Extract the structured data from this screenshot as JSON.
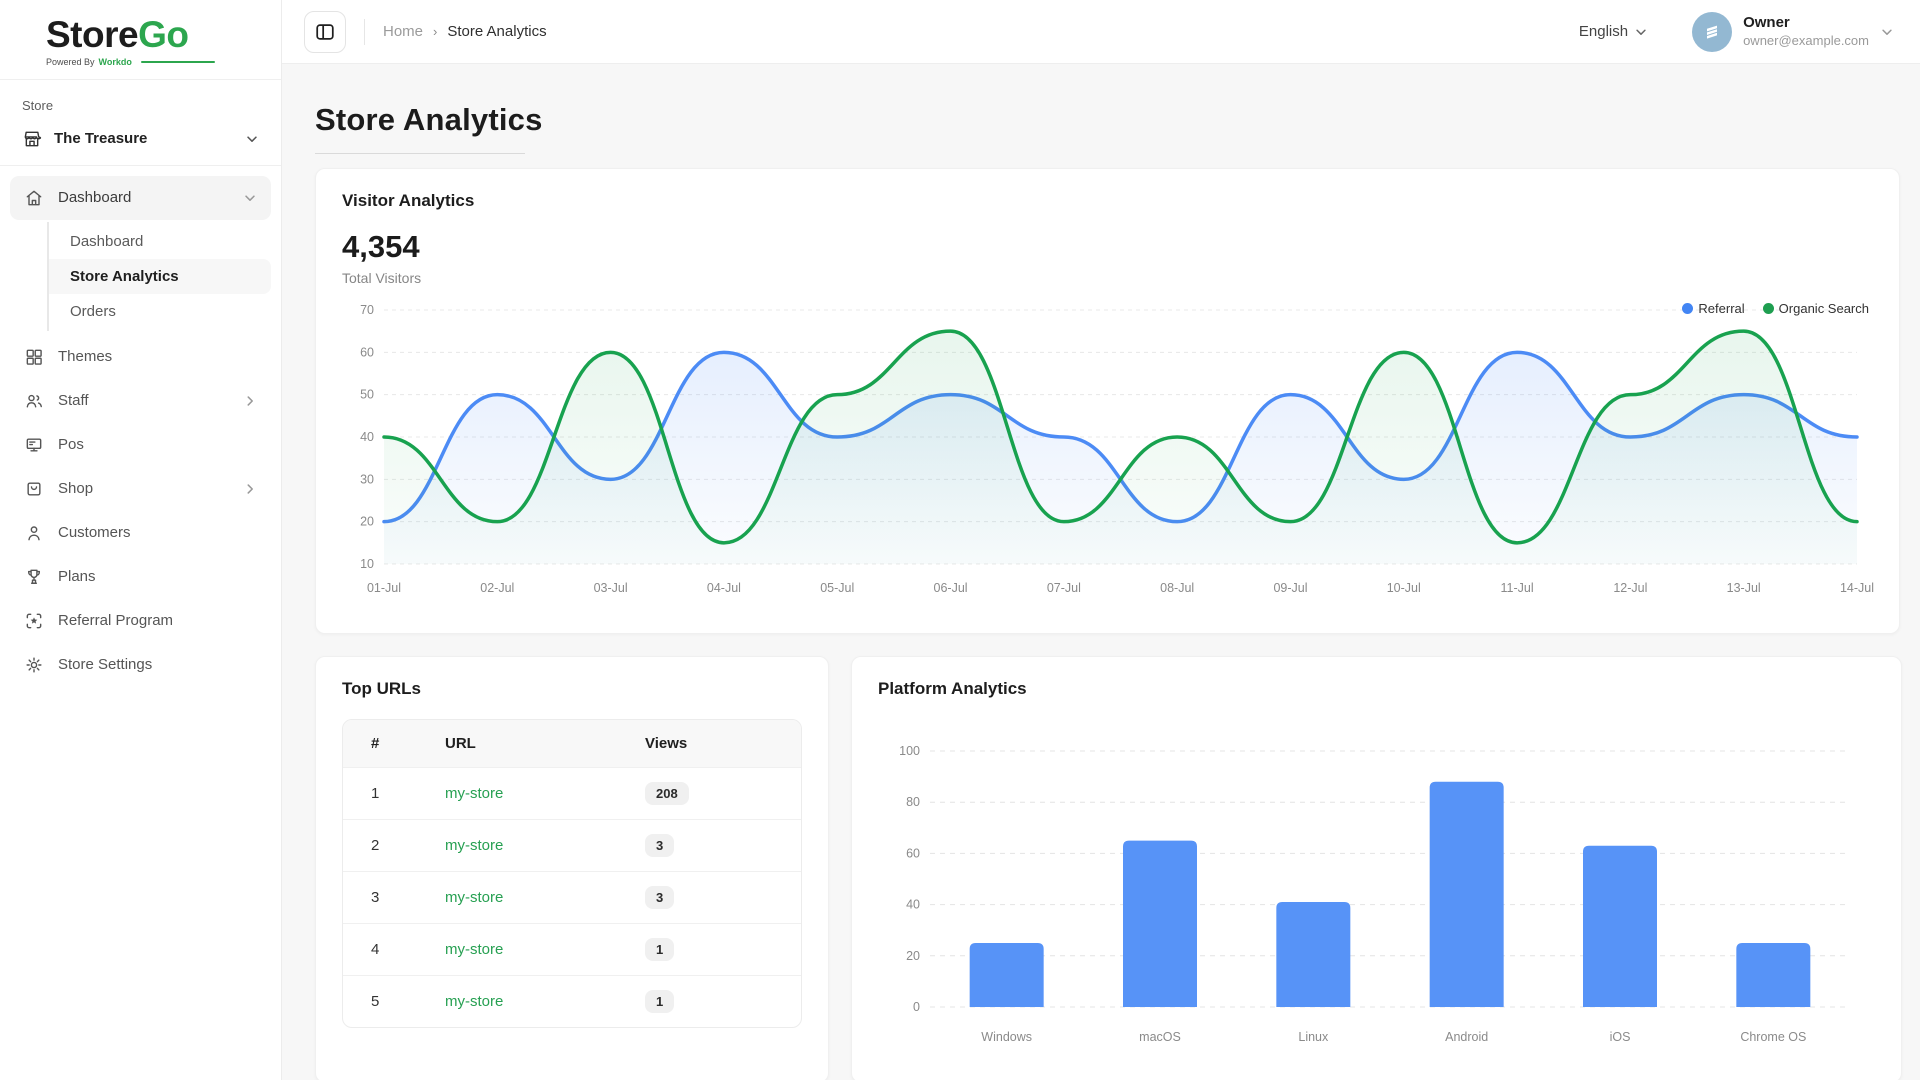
{
  "brand": {
    "name_primary": "Store",
    "name_secondary": "Go",
    "tagline_prefix": "Powered By",
    "tagline_brand": "Workdo"
  },
  "sidebar": {
    "section_label": "Store",
    "store_name": "The Treasure",
    "nav": [
      {
        "label": "Dashboard",
        "icon": "home-icon",
        "expanded": true,
        "children": [
          {
            "label": "Dashboard",
            "active": false
          },
          {
            "label": "Store Analytics",
            "active": true
          },
          {
            "label": "Orders",
            "active": false
          }
        ]
      },
      {
        "label": "Themes",
        "icon": "themes-icon"
      },
      {
        "label": "Staff",
        "icon": "staff-icon",
        "has_chevron": true
      },
      {
        "label": "Pos",
        "icon": "pos-icon"
      },
      {
        "label": "Shop",
        "icon": "shop-icon",
        "has_chevron": true
      },
      {
        "label": "Customers",
        "icon": "customers-icon"
      },
      {
        "label": "Plans",
        "icon": "plans-icon"
      },
      {
        "label": "Referral Program",
        "icon": "referral-icon"
      },
      {
        "label": "Store Settings",
        "icon": "settings-icon"
      }
    ]
  },
  "header": {
    "breadcrumb_home": "Home",
    "breadcrumb_current": "Store Analytics",
    "language": "English",
    "user": {
      "name": "Owner",
      "email": "owner@example.com"
    }
  },
  "page": {
    "title": "Store Analytics"
  },
  "visitor_analytics": {
    "card_title": "Visitor Analytics",
    "total_value": "4,354",
    "total_label": "Total Visitors",
    "legend": [
      {
        "label": "Referral",
        "color": "#4285f4"
      },
      {
        "label": "Organic Search",
        "color": "#1e9e50"
      }
    ]
  },
  "top_urls": {
    "card_title": "Top URLs",
    "columns": [
      "#",
      "URL",
      "Views"
    ],
    "rows": [
      {
        "rank": "1",
        "url": "my-store",
        "views": "208"
      },
      {
        "rank": "2",
        "url": "my-store",
        "views": "3"
      },
      {
        "rank": "3",
        "url": "my-store",
        "views": "3"
      },
      {
        "rank": "4",
        "url": "my-store",
        "views": "1"
      },
      {
        "rank": "5",
        "url": "my-store",
        "views": "1"
      }
    ]
  },
  "platform_analytics": {
    "card_title": "Platform Analytics"
  },
  "chart_data": [
    {
      "type": "line",
      "title": "Visitor Analytics",
      "x": [
        "01-Jul",
        "02-Jul",
        "03-Jul",
        "04-Jul",
        "05-Jul",
        "06-Jul",
        "07-Jul",
        "08-Jul",
        "09-Jul",
        "10-Jul",
        "11-Jul",
        "12-Jul",
        "13-Jul",
        "14-Jul"
      ],
      "series": [
        {
          "name": "Referral",
          "color": "#4c8bf5",
          "fill_opacity": 0.14,
          "values": [
            20,
            50,
            30,
            60,
            40,
            50,
            40,
            20,
            50,
            30,
            60,
            40,
            50,
            40
          ]
        },
        {
          "name": "Organic Search",
          "color": "#18a24f",
          "fill_opacity": 0.1,
          "values": [
            40,
            20,
            60,
            15,
            50,
            65,
            20,
            40,
            20,
            60,
            15,
            50,
            65,
            20
          ]
        }
      ],
      "ylim": [
        10,
        70
      ],
      "yticks": [
        10,
        20,
        30,
        40,
        50,
        60,
        70
      ],
      "grid": true,
      "legend_position": "top-right",
      "xlabel": "",
      "ylabel": ""
    },
    {
      "type": "bar",
      "title": "Platform Analytics",
      "categories": [
        "Windows",
        "macOS",
        "Linux",
        "Android",
        "iOS",
        "Chrome OS"
      ],
      "values": [
        25,
        65,
        41,
        88,
        63,
        25
      ],
      "bar_color": "#5793f7",
      "ylim": [
        0,
        100
      ],
      "yticks": [
        0,
        20,
        40,
        60,
        80,
        100
      ],
      "grid": true,
      "xlabel": "",
      "ylabel": ""
    }
  ]
}
